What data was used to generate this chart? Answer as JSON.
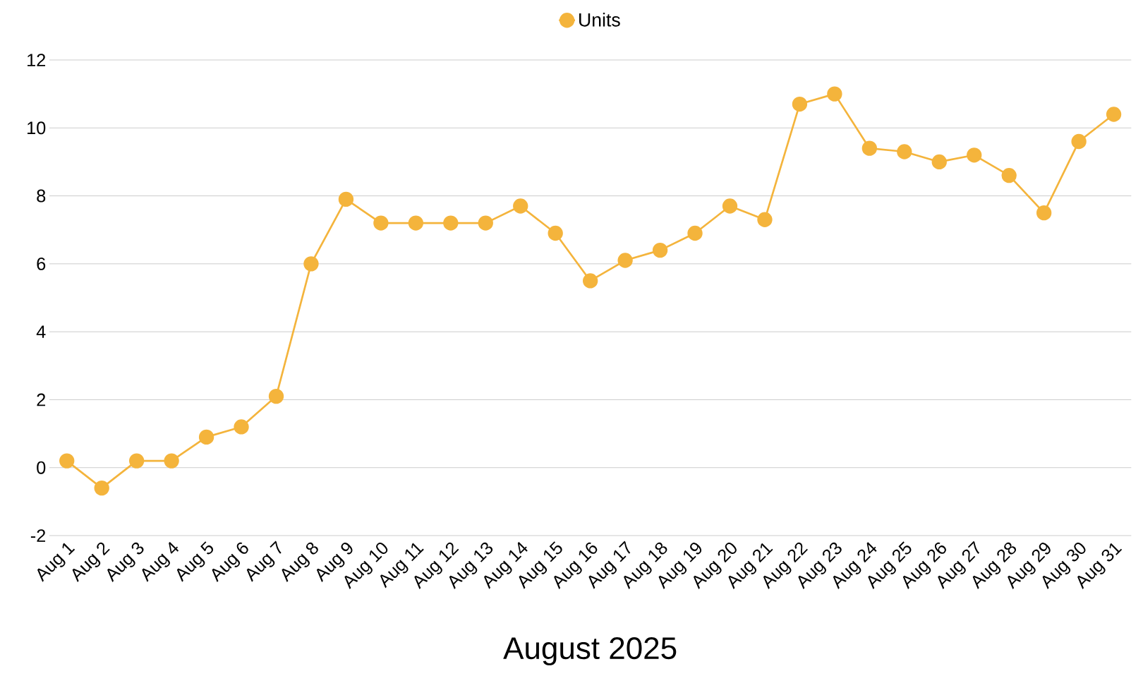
{
  "chart_data": {
    "type": "line",
    "xlabel": "August 2025",
    "categories": [
      "Aug 1",
      "Aug 2",
      "Aug 3",
      "Aug 4",
      "Aug 5",
      "Aug 6",
      "Aug 7",
      "Aug 8",
      "Aug 9",
      "Aug 10",
      "Aug 11",
      "Aug 12",
      "Aug 13",
      "Aug 14",
      "Aug 15",
      "Aug 16",
      "Aug 17",
      "Aug 18",
      "Aug 19",
      "Aug 20",
      "Aug 21",
      "Aug 22",
      "Aug 23",
      "Aug 24",
      "Aug 25",
      "Aug 26",
      "Aug 27",
      "Aug 28",
      "Aug 29",
      "Aug 30",
      "Aug 31"
    ],
    "series": [
      {
        "name": "Units",
        "color": "#f4b43c",
        "values": [
          0.2,
          -0.6,
          0.2,
          0.2,
          0.9,
          1.2,
          2.1,
          6.0,
          7.9,
          7.2,
          7.2,
          7.2,
          7.2,
          7.7,
          6.9,
          5.5,
          6.1,
          6.4,
          6.9,
          7.7,
          7.3,
          10.7,
          11.0,
          9.4,
          9.3,
          9.0,
          9.2,
          8.6,
          7.5,
          9.6,
          10.4
        ]
      }
    ],
    "ylim": [
      -2,
      12
    ],
    "yticks": [
      -2,
      0,
      2,
      4,
      6,
      8,
      10,
      12
    ],
    "grid": "y",
    "legend": "top",
    "marker": "circle",
    "line_style": "solid"
  }
}
